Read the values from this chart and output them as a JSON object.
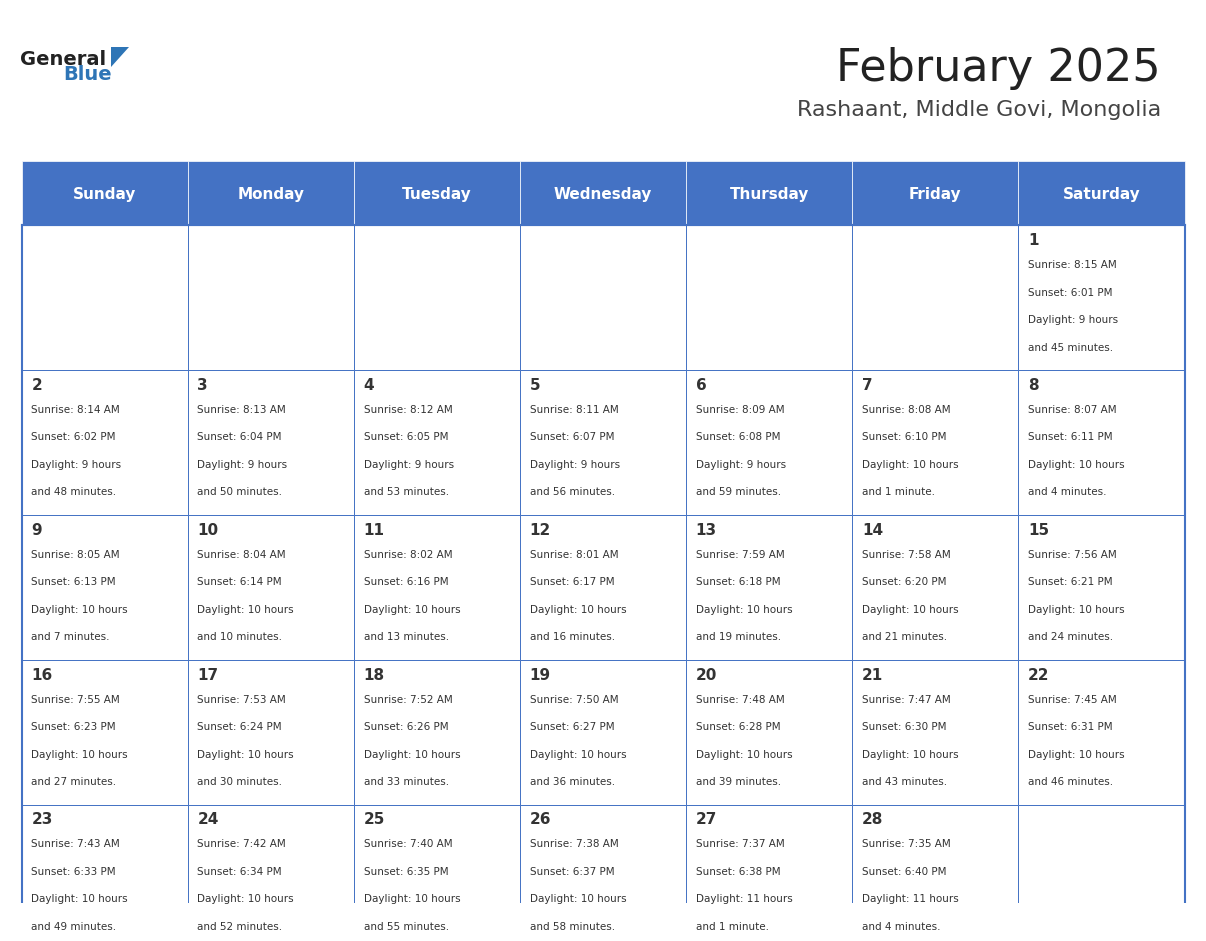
{
  "title": "February 2025",
  "subtitle": "Rashaant, Middle Govi, Mongolia",
  "days_of_week": [
    "Sunday",
    "Monday",
    "Tuesday",
    "Wednesday",
    "Thursday",
    "Friday",
    "Saturday"
  ],
  "header_bg": "#4472C4",
  "header_text": "#FFFFFF",
  "cell_bg_light": "#F2F2F2",
  "cell_bg_white": "#FFFFFF",
  "border_color": "#4472C4",
  "day_number_color": "#333333",
  "info_text_color": "#333333",
  "title_color": "#222222",
  "subtitle_color": "#444444",
  "logo_general_color": "#222222",
  "logo_blue_color": "#2E75B6",
  "calendar_data": [
    [
      null,
      null,
      null,
      null,
      null,
      null,
      {
        "day": 1,
        "sunrise": "8:15 AM",
        "sunset": "6:01 PM",
        "daylight": "9 hours\nand 45 minutes."
      }
    ],
    [
      {
        "day": 2,
        "sunrise": "8:14 AM",
        "sunset": "6:02 PM",
        "daylight": "9 hours\nand 48 minutes."
      },
      {
        "day": 3,
        "sunrise": "8:13 AM",
        "sunset": "6:04 PM",
        "daylight": "9 hours\nand 50 minutes."
      },
      {
        "day": 4,
        "sunrise": "8:12 AM",
        "sunset": "6:05 PM",
        "daylight": "9 hours\nand 53 minutes."
      },
      {
        "day": 5,
        "sunrise": "8:11 AM",
        "sunset": "6:07 PM",
        "daylight": "9 hours\nand 56 minutes."
      },
      {
        "day": 6,
        "sunrise": "8:09 AM",
        "sunset": "6:08 PM",
        "daylight": "9 hours\nand 59 minutes."
      },
      {
        "day": 7,
        "sunrise": "8:08 AM",
        "sunset": "6:10 PM",
        "daylight": "10 hours\nand 1 minute."
      },
      {
        "day": 8,
        "sunrise": "8:07 AM",
        "sunset": "6:11 PM",
        "daylight": "10 hours\nand 4 minutes."
      }
    ],
    [
      {
        "day": 9,
        "sunrise": "8:05 AM",
        "sunset": "6:13 PM",
        "daylight": "10 hours\nand 7 minutes."
      },
      {
        "day": 10,
        "sunrise": "8:04 AM",
        "sunset": "6:14 PM",
        "daylight": "10 hours\nand 10 minutes."
      },
      {
        "day": 11,
        "sunrise": "8:02 AM",
        "sunset": "6:16 PM",
        "daylight": "10 hours\nand 13 minutes."
      },
      {
        "day": 12,
        "sunrise": "8:01 AM",
        "sunset": "6:17 PM",
        "daylight": "10 hours\nand 16 minutes."
      },
      {
        "day": 13,
        "sunrise": "7:59 AM",
        "sunset": "6:18 PM",
        "daylight": "10 hours\nand 19 minutes."
      },
      {
        "day": 14,
        "sunrise": "7:58 AM",
        "sunset": "6:20 PM",
        "daylight": "10 hours\nand 21 minutes."
      },
      {
        "day": 15,
        "sunrise": "7:56 AM",
        "sunset": "6:21 PM",
        "daylight": "10 hours\nand 24 minutes."
      }
    ],
    [
      {
        "day": 16,
        "sunrise": "7:55 AM",
        "sunset": "6:23 PM",
        "daylight": "10 hours\nand 27 minutes."
      },
      {
        "day": 17,
        "sunrise": "7:53 AM",
        "sunset": "6:24 PM",
        "daylight": "10 hours\nand 30 minutes."
      },
      {
        "day": 18,
        "sunrise": "7:52 AM",
        "sunset": "6:26 PM",
        "daylight": "10 hours\nand 33 minutes."
      },
      {
        "day": 19,
        "sunrise": "7:50 AM",
        "sunset": "6:27 PM",
        "daylight": "10 hours\nand 36 minutes."
      },
      {
        "day": 20,
        "sunrise": "7:48 AM",
        "sunset": "6:28 PM",
        "daylight": "10 hours\nand 39 minutes."
      },
      {
        "day": 21,
        "sunrise": "7:47 AM",
        "sunset": "6:30 PM",
        "daylight": "10 hours\nand 43 minutes."
      },
      {
        "day": 22,
        "sunrise": "7:45 AM",
        "sunset": "6:31 PM",
        "daylight": "10 hours\nand 46 minutes."
      }
    ],
    [
      {
        "day": 23,
        "sunrise": "7:43 AM",
        "sunset": "6:33 PM",
        "daylight": "10 hours\nand 49 minutes."
      },
      {
        "day": 24,
        "sunrise": "7:42 AM",
        "sunset": "6:34 PM",
        "daylight": "10 hours\nand 52 minutes."
      },
      {
        "day": 25,
        "sunrise": "7:40 AM",
        "sunset": "6:35 PM",
        "daylight": "10 hours\nand 55 minutes."
      },
      {
        "day": 26,
        "sunrise": "7:38 AM",
        "sunset": "6:37 PM",
        "daylight": "10 hours\nand 58 minutes."
      },
      {
        "day": 27,
        "sunrise": "7:37 AM",
        "sunset": "6:38 PM",
        "daylight": "11 hours\nand 1 minute."
      },
      {
        "day": 28,
        "sunrise": "7:35 AM",
        "sunset": "6:40 PM",
        "daylight": "11 hours\nand 4 minutes."
      },
      null
    ]
  ]
}
